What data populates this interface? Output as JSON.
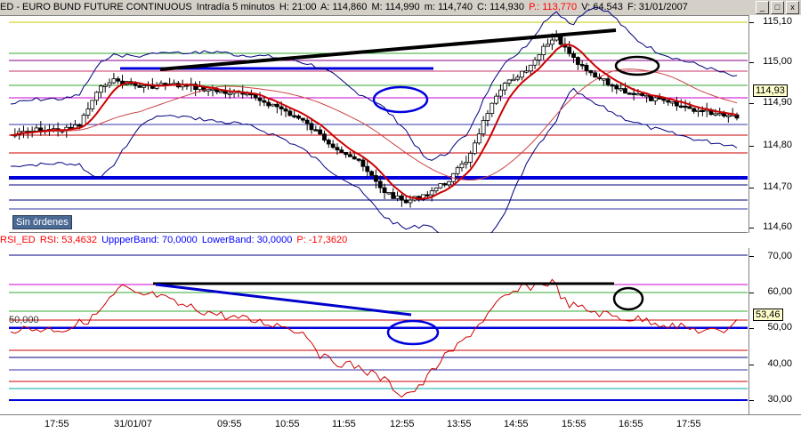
{
  "price_header": {
    "symbol": "ED - EURO BUND FUTURE CONTINUOUS",
    "interval": "Intradía 5 minutos",
    "h": "H: 21:00",
    "a": "A: 114,860",
    "m": "M: 114,990",
    "mlow": "m: 114,740",
    "c": "C: 114,930",
    "p": "P.: 113,770",
    "v": "V: 64.543",
    "f": "F: 31/01/2007"
  },
  "rsi_header": {
    "name": "RSI_ED",
    "rsi": "RSI: 53,4632",
    "upper": "UppperBand: 70,0000",
    "lower": "LowerBand: 30,0000",
    "p": "P: -17,3620"
  },
  "window_buttons": [
    "_",
    "□",
    "x"
  ],
  "sin_ordenes_label": "Sin órdenes",
  "price_axis": [
    "115,10",
    "115,00",
    "114,90",
    "114,80",
    "114,70",
    "114,60"
  ],
  "price_badge": "114,93",
  "rsi_axis": [
    "70,00",
    "60,00",
    "50,00",
    "40,00",
    "30,00"
  ],
  "rsi_badge": "53,46",
  "rsi_left_label": "50,000",
  "time_axis": [
    "17:55",
    "31/01/07",
    "09:55",
    "10:55",
    "11:55",
    "12:55",
    "13:55",
    "14:55",
    "15:55",
    "16:55",
    "17:55"
  ],
  "colors": {
    "candle_up": "#ffffff",
    "candle_down": "#000000",
    "ma_fast": "#cc0000",
    "bollinger": "#000080",
    "trend_black": "#000000",
    "trend_blue": "#0000cc",
    "rsi_line": "#cc0000",
    "header_bg": "#d4d0c8"
  }
}
